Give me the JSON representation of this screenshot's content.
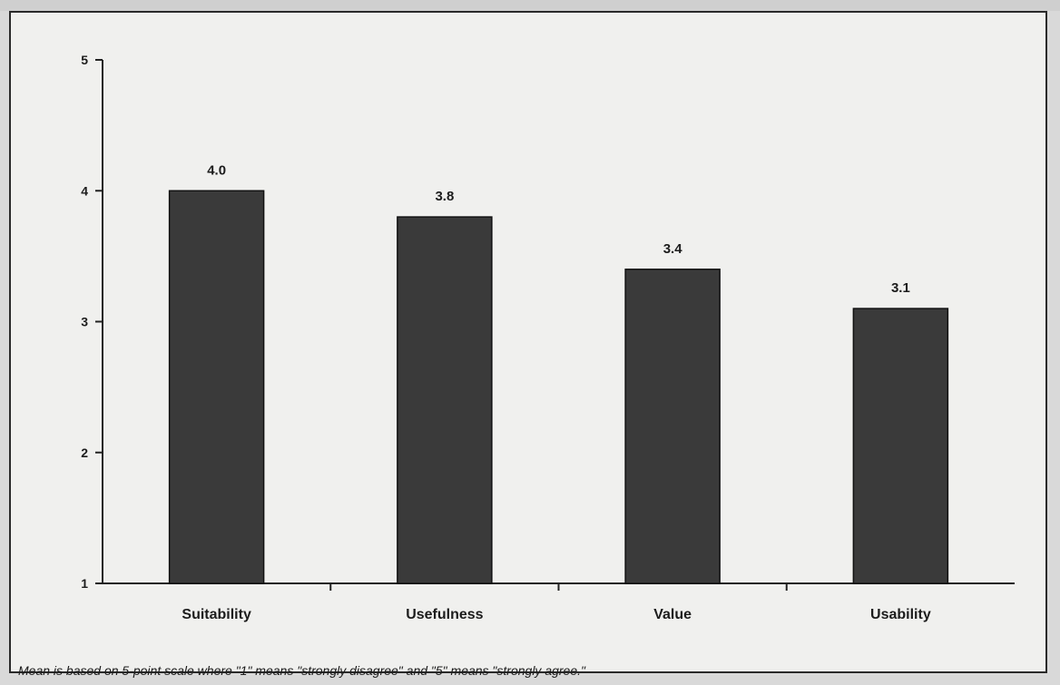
{
  "chart_data": {
    "type": "bar",
    "categories": [
      "Suitability",
      "Usefulness",
      "Value",
      "Usability"
    ],
    "values": [
      4.0,
      3.8,
      3.4,
      3.1
    ],
    "data_labels": [
      "4.0",
      "3.8",
      "3.4",
      "3.1"
    ],
    "title": "",
    "xlabel": "",
    "ylabel": "",
    "ylim": [
      1,
      5
    ],
    "yticks": [
      1,
      2,
      3,
      4,
      5
    ],
    "grid": false,
    "bar_color": "#3a3a3a",
    "footnote": "Mean is based on 5-point scale where \"1\" means \"strongly disagree\" and \"5\" means \"strongly agree.\""
  }
}
